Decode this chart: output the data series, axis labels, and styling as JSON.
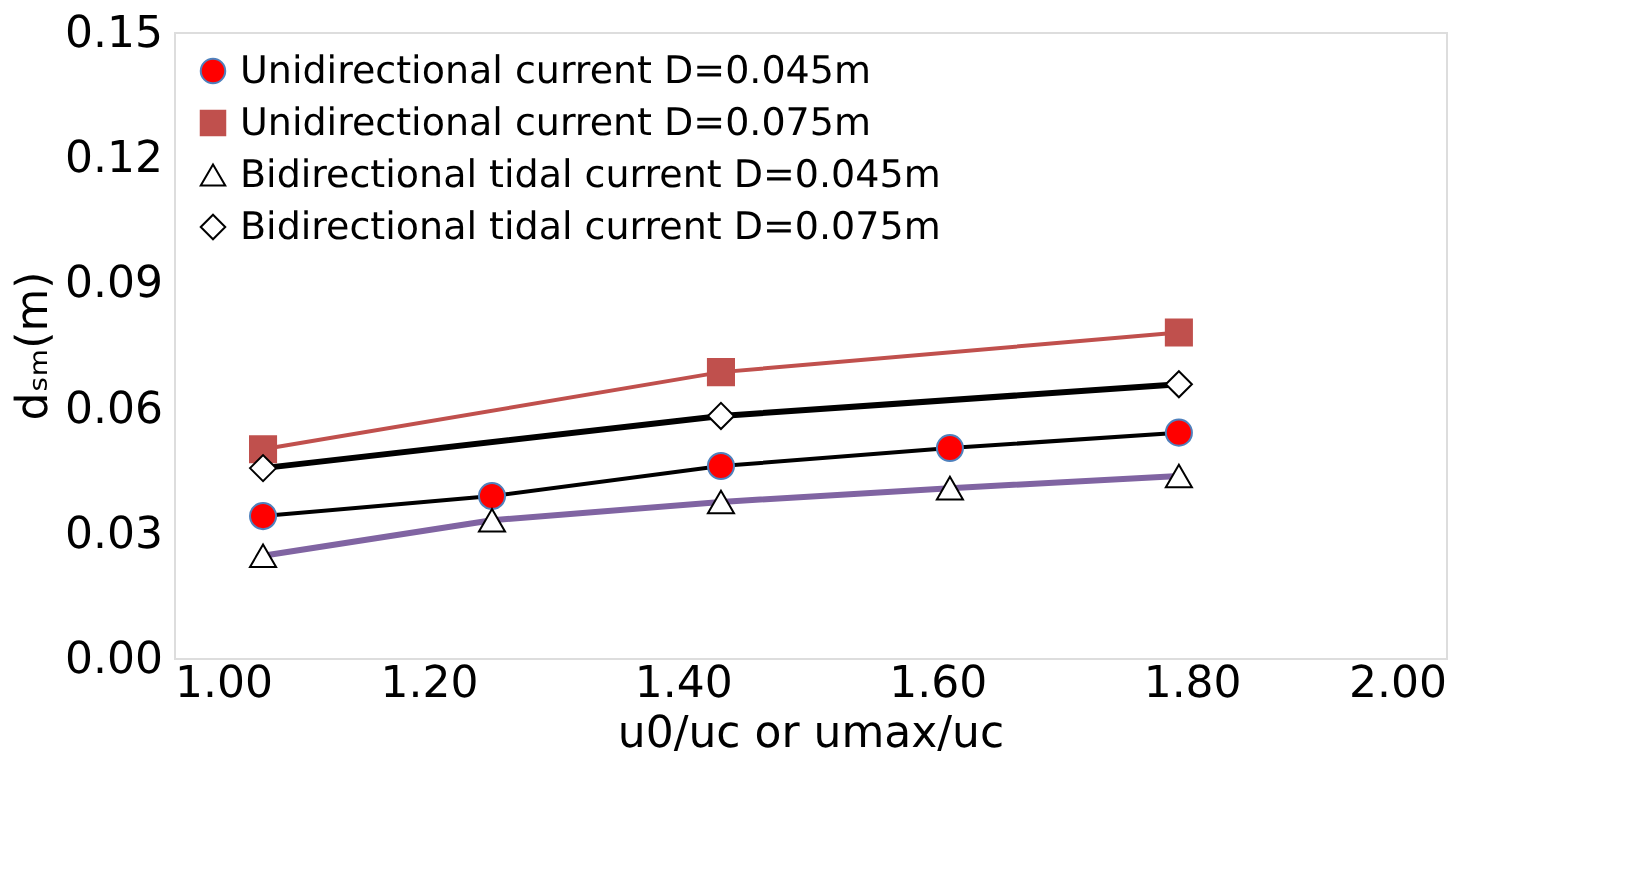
{
  "chart_data": {
    "type": "line",
    "xlabel": "u0/uc or umax/uc",
    "ylabel": "dₛₘ(m)",
    "xlim": [
      1.0,
      2.0
    ],
    "xticks": [
      {
        "value": 1.0,
        "label": "1.00"
      },
      {
        "value": 1.2,
        "label": "1.20"
      },
      {
        "value": 1.4,
        "label": "1.40"
      },
      {
        "value": 1.6,
        "label": "1.60"
      },
      {
        "value": 1.8,
        "label": "1.80"
      },
      {
        "value": 2.0,
        "label": "2.00"
      }
    ],
    "ylim": [
      0,
      0.15
    ],
    "yticks": [
      {
        "value": 0,
        "label": "0.00"
      },
      {
        "value": 0.03,
        "label": "0.03"
      },
      {
        "value": 0.06,
        "label": "0.06"
      },
      {
        "value": 0.09,
        "label": "0.09"
      },
      {
        "value": 0.12,
        "label": "0.12"
      },
      {
        "value": 0.15,
        "label": "0.15"
      }
    ],
    "grid": false,
    "legend": "top left",
    "line_style": "solid",
    "series": [
      {
        "name": "Unidirectional current D=0.045m",
        "color": "#ff0000",
        "marker": "circle",
        "x": [
          1.07,
          1.25,
          1.43,
          1.61,
          1.79
        ],
        "values": [
          0.034,
          0.0388,
          0.046,
          0.0503,
          0.054
        ]
      },
      {
        "name": "Unidirectional current D=0.075m",
        "color": "#c0504d",
        "marker": "square",
        "x": [
          1.07,
          1.43,
          1.79
        ],
        "values": [
          0.05,
          0.0685,
          0.078
        ]
      },
      {
        "name": "Bidirectional tidal current D=0.045m",
        "color": "#8064a2",
        "marker": "triangle",
        "x": [
          1.07,
          1.25,
          1.43,
          1.61,
          1.79
        ],
        "values": [
          0.0245,
          0.033,
          0.0374,
          0.0407,
          0.0436
        ]
      },
      {
        "name": "Bidirectional tidal current D=0.075m",
        "color": "#000000",
        "marker": "diamond",
        "x": [
          1.07,
          1.43,
          1.79
        ],
        "values": [
          0.0455,
          0.058,
          0.0656
        ]
      }
    ]
  }
}
